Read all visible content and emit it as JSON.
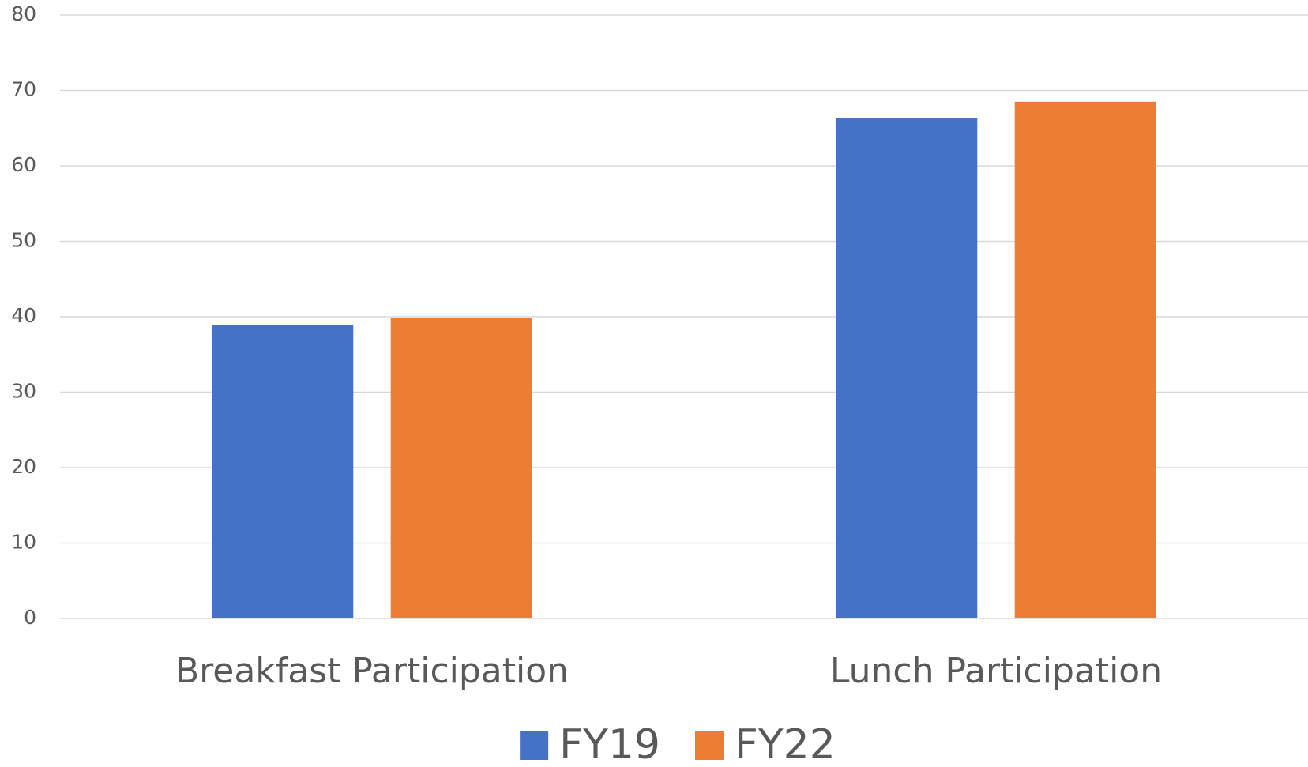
{
  "chart_data": {
    "type": "bar",
    "categories": [
      "Breakfast Participation",
      "Lunch Participation"
    ],
    "series": [
      {
        "name": "FY19",
        "color": "#4472c4",
        "values": [
          38.9,
          66.3
        ]
      },
      {
        "name": "FY22",
        "color": "#ed7d31",
        "values": [
          39.8,
          68.5
        ]
      }
    ],
    "ylim": [
      0,
      80
    ],
    "yticks": [
      0,
      10,
      20,
      30,
      40,
      50,
      60,
      70,
      80
    ],
    "grid": true,
    "legend": "bottom"
  }
}
